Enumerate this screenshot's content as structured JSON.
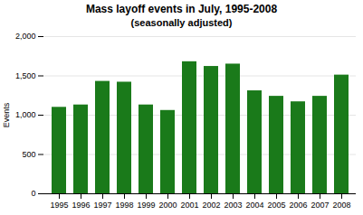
{
  "chart_data": {
    "type": "bar",
    "title": "Mass layoff events in July, 1995-2008",
    "subtitle": "(seasonally adjusted)",
    "y_label": "Events",
    "categories": [
      "1995",
      "1996",
      "1997",
      "1998",
      "1999",
      "2000",
      "2001",
      "2002",
      "2003",
      "2004",
      "2005",
      "2006",
      "2007",
      "2008"
    ],
    "values": [
      1100,
      1130,
      1430,
      1420,
      1130,
      1060,
      1680,
      1620,
      1650,
      1310,
      1240,
      1170,
      1240,
      1510
    ],
    "color": "#1a7a1a",
    "ylim": [
      0,
      2000
    ],
    "yticks": [
      0,
      500,
      {
        "value": 1000,
        "label": "1,000"
      },
      {
        "value": 1500,
        "label": "1,500"
      },
      {
        "value": 2000,
        "label": "2,000"
      }
    ],
    "grid": true
  }
}
